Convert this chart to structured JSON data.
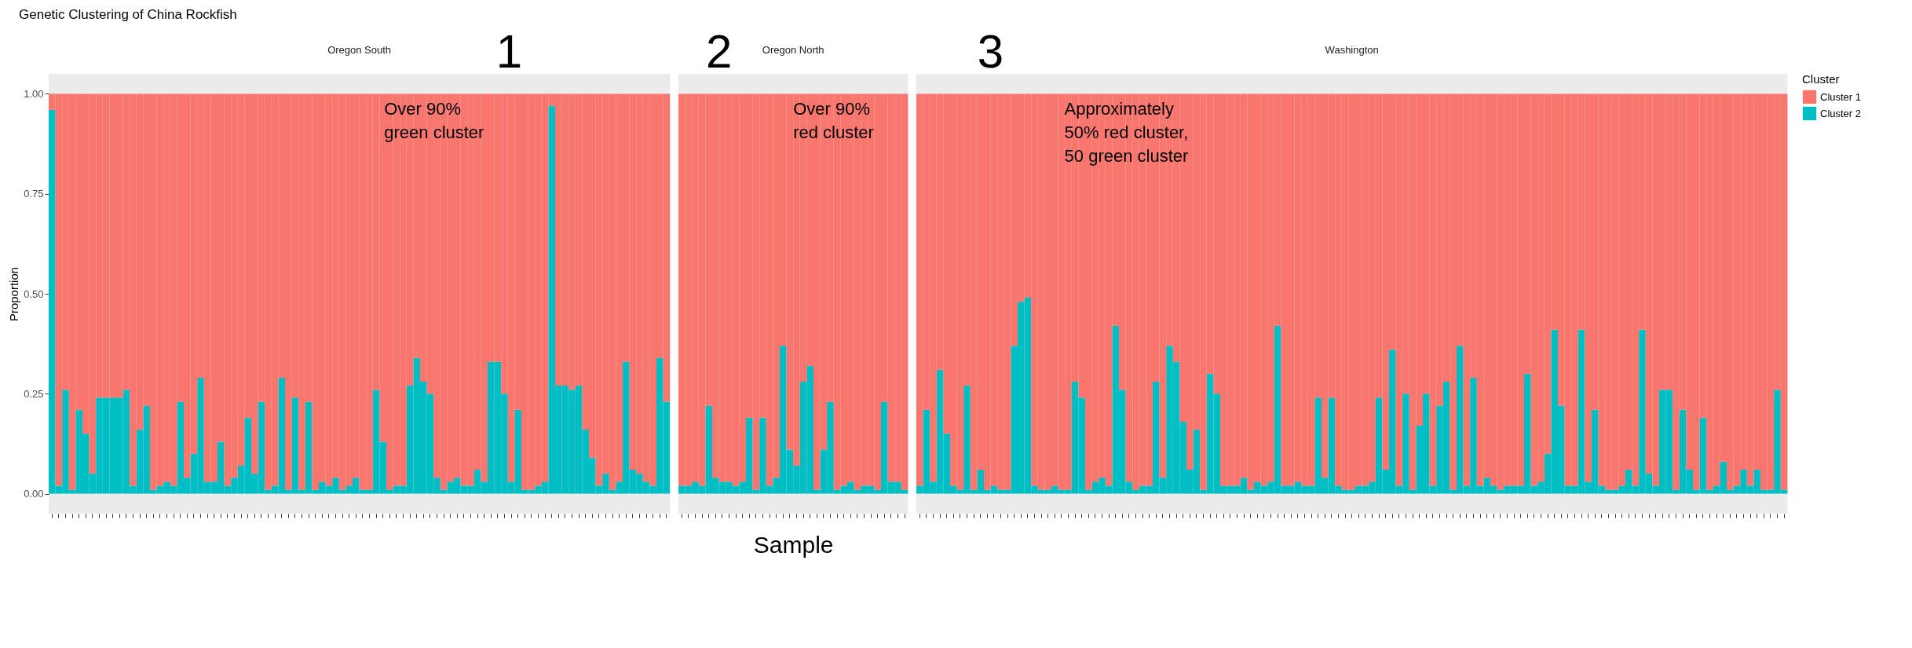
{
  "chart_data": [
    {
      "type": "bar",
      "stacked": true,
      "title": "Genetic Clustering of China Rockfish",
      "subtitle": "Oregon South",
      "ylabel": "Proportion",
      "tick_labels": "y",
      "ylim": [
        -0.05,
        1.05
      ],
      "yticks": [
        {
          "value": 0,
          "label": "0.00"
        },
        {
          "value": 0.25,
          "label": "0.25"
        },
        {
          "value": 0.5,
          "label": "0.50"
        },
        {
          "value": 0.75,
          "label": "0.75"
        },
        {
          "value": 1,
          "label": "1.00"
        }
      ],
      "annotations": [
        "1",
        "Over 90%\ngreen cluster"
      ],
      "categories": [
        null,
        null,
        null,
        null,
        null,
        null,
        null,
        null,
        null,
        null,
        null,
        null,
        null,
        null,
        null,
        null,
        null,
        null,
        null,
        null,
        null,
        null,
        null,
        null,
        null,
        null,
        null,
        null,
        null,
        null,
        null,
        null,
        null,
        null,
        null,
        null,
        null,
        null,
        null,
        null,
        null,
        null,
        null,
        null,
        null,
        null,
        null,
        null,
        null,
        null,
        null,
        null,
        null,
        null,
        null,
        null,
        null,
        null,
        null,
        null,
        null,
        null,
        null,
        null,
        null,
        null,
        null,
        null,
        null,
        null,
        null,
        null,
        null,
        null,
        null,
        null,
        null,
        null,
        null,
        null,
        null,
        null,
        null,
        null,
        null,
        null,
        null,
        null,
        null,
        null,
        null,
        null
      ],
      "series": [
        {
          "color": "#00bfc4",
          "values": [
            0.96,
            0.02,
            0.26,
            0.01,
            0.21,
            0.15,
            0.05,
            0.24,
            0.24,
            0.24,
            0.24,
            0.26,
            0.02,
            0.16,
            0.22,
            0.01,
            0.02,
            0.03,
            0.02,
            0.23,
            0.04,
            0.1,
            0.29,
            0.03,
            0.03,
            0.13,
            0.02,
            0.04,
            0.07,
            0.19,
            0.05,
            0.23,
            0.01,
            0.02,
            0.29,
            0.01,
            0.24,
            0.01,
            0.23,
            0.01,
            0.03,
            0.02,
            0.04,
            0.01,
            0.02,
            0.04,
            0.01,
            0.01,
            0.26,
            0.13,
            0.01,
            0.02,
            0.02,
            0.27,
            0.34,
            0.28,
            0.25,
            0.04,
            0.01,
            0.03,
            0.04,
            0.02,
            0.02,
            0.06,
            0.03,
            0.33,
            0.33,
            0.25,
            0.03,
            0.21,
            0.01,
            0.01,
            0.02,
            0.03,
            0.97,
            0.27,
            0.27,
            0.26,
            0.27,
            0.16,
            0.09,
            0.02,
            0.05,
            0.01,
            0.03,
            0.33,
            0.06,
            0.05,
            0.03,
            0.02,
            0.34,
            0.23
          ]
        },
        {
          "color": "#f8766d",
          "values": [
            0.04,
            0.98,
            0.74,
            0.99,
            0.79,
            0.85,
            0.95,
            0.76,
            0.76,
            0.76,
            0.76,
            0.74,
            0.98,
            0.84,
            0.78,
            0.99,
            0.98,
            0.97,
            0.98,
            0.77,
            0.96,
            0.9,
            0.71,
            0.97,
            0.97,
            0.87,
            0.98,
            0.96,
            0.93,
            0.81,
            0.95,
            0.77,
            0.99,
            0.98,
            0.71,
            0.99,
            0.76,
            0.99,
            0.77,
            0.99,
            0.97,
            0.98,
            0.96,
            0.99,
            0.98,
            0.96,
            0.99,
            0.99,
            0.74,
            0.87,
            0.99,
            0.98,
            0.98,
            0.73,
            0.66,
            0.72,
            0.75,
            0.96,
            0.99,
            0.97,
            0.96,
            0.98,
            0.98,
            0.94,
            0.97,
            0.67,
            0.67,
            0.75,
            0.97,
            0.79,
            0.99,
            0.99,
            0.98,
            0.97,
            0.03,
            0.73,
            0.73,
            0.74,
            0.73,
            0.84,
            0.91,
            0.98,
            0.95,
            0.99,
            0.97,
            0.67,
            0.94,
            0.95,
            0.97,
            0.98,
            0.66,
            0.77
          ]
        }
      ]
    },
    {
      "type": "bar",
      "stacked": true,
      "subtitle": "Oregon North",
      "xlabel": "Sample",
      "tick_labels": false,
      "ylim": [
        -0.05,
        1.05
      ],
      "annotations": [
        "2",
        "Over 90%\nred cluster"
      ],
      "categories": [
        null,
        null,
        null,
        null,
        null,
        null,
        null,
        null,
        null,
        null,
        null,
        null,
        null,
        null,
        null,
        null,
        null,
        null,
        null,
        null,
        null,
        null,
        null,
        null,
        null,
        null,
        null,
        null,
        null,
        null,
        null,
        null,
        null,
        null
      ],
      "series": [
        {
          "color": "#00bfc4",
          "values": [
            0.02,
            0.02,
            0.03,
            0.02,
            0.22,
            0.04,
            0.03,
            0.03,
            0.02,
            0.03,
            0.19,
            0.01,
            0.19,
            0.02,
            0.04,
            0.37,
            0.11,
            0.07,
            0.28,
            0.32,
            0.01,
            0.11,
            0.23,
            0.01,
            0.02,
            0.03,
            0.01,
            0.02,
            0.02,
            0.01,
            0.23,
            0.03,
            0.03,
            0.01
          ]
        },
        {
          "color": "#f8766d",
          "values": [
            0.98,
            0.98,
            0.97,
            0.98,
            0.78,
            0.96,
            0.97,
            0.97,
            0.98,
            0.97,
            0.81,
            0.99,
            0.81,
            0.98,
            0.96,
            0.63,
            0.89,
            0.93,
            0.72,
            0.68,
            0.99,
            0.89,
            0.77,
            0.99,
            0.98,
            0.97,
            0.99,
            0.98,
            0.98,
            0.99,
            0.77,
            0.97,
            0.97,
            0.99
          ]
        }
      ]
    },
    {
      "type": "bar",
      "stacked": true,
      "subtitle": "Washington",
      "tick_labels": false,
      "ylim": [
        -0.05,
        1.05
      ],
      "legend": "right",
      "legend_title": "Cluster",
      "annotations": [
        "3",
        "Approximately\n50% red cluster,\n50 green cluster"
      ],
      "categories": [
        null,
        null,
        null,
        null,
        null,
        null,
        null,
        null,
        null,
        null,
        null,
        null,
        null,
        null,
        null,
        null,
        null,
        null,
        null,
        null,
        null,
        null,
        null,
        null,
        null,
        null,
        null,
        null,
        null,
        null,
        null,
        null,
        null,
        null,
        null,
        null,
        null,
        null,
        null,
        null,
        null,
        null,
        null,
        null,
        null,
        null,
        null,
        null,
        null,
        null,
        null,
        null,
        null,
        null,
        null,
        null,
        null,
        null,
        null,
        null,
        null,
        null,
        null,
        null,
        null,
        null,
        null,
        null,
        null,
        null,
        null,
        null,
        null,
        null,
        null,
        null,
        null,
        null,
        null,
        null,
        null,
        null,
        null,
        null,
        null,
        null,
        null,
        null,
        null,
        null,
        null,
        null,
        null,
        null,
        null,
        null,
        null,
        null,
        null,
        null,
        null,
        null,
        null,
        null,
        null,
        null,
        null,
        null,
        null,
        null,
        null,
        null,
        null,
        null,
        null,
        null,
        null,
        null,
        null,
        null,
        null,
        null,
        null,
        null,
        null,
        null,
        null,
        null,
        null
      ],
      "series": [
        {
          "name": "Cluster 2",
          "color": "#00bfc4",
          "values": [
            0.02,
            0.21,
            0.03,
            0.31,
            0.15,
            0.02,
            0.01,
            0.27,
            0.01,
            0.06,
            0.01,
            0.02,
            0.01,
            0.01,
            0.37,
            0.48,
            0.49,
            0.02,
            0.01,
            0.01,
            0.02,
            0.01,
            0.01,
            0.28,
            0.24,
            0.01,
            0.03,
            0.04,
            0.02,
            0.42,
            0.26,
            0.03,
            0.01,
            0.02,
            0.02,
            0.28,
            0.04,
            0.37,
            0.33,
            0.18,
            0.06,
            0.16,
            0.01,
            0.3,
            0.25,
            0.02,
            0.02,
            0.02,
            0.04,
            0.01,
            0.03,
            0.02,
            0.03,
            0.42,
            0.02,
            0.02,
            0.03,
            0.02,
            0.02,
            0.24,
            0.04,
            0.24,
            0.02,
            0.01,
            0.01,
            0.02,
            0.02,
            0.03,
            0.24,
            0.06,
            0.36,
            0.02,
            0.25,
            0.01,
            0.17,
            0.25,
            0.02,
            0.22,
            0.28,
            0.01,
            0.37,
            0.02,
            0.29,
            0.02,
            0.04,
            0.02,
            0.01,
            0.02,
            0.02,
            0.02,
            0.3,
            0.02,
            0.03,
            0.1,
            0.41,
            0.22,
            0.02,
            0.02,
            0.41,
            0.03,
            0.21,
            0.02,
            0.01,
            0.01,
            0.02,
            0.06,
            0.02,
            0.41,
            0.05,
            0.02,
            0.26,
            0.26,
            0.01,
            0.21,
            0.06,
            0.01,
            0.19,
            0.01,
            0.02,
            0.08,
            0.01,
            0.02,
            0.06,
            0.02,
            0.06,
            0.01,
            0.01,
            0.26,
            0.01
          ]
        },
        {
          "name": "Cluster 1",
          "color": "#f8766d",
          "values": [
            0.98,
            0.79,
            0.97,
            0.69,
            0.85,
            0.98,
            0.99,
            0.73,
            0.99,
            0.94,
            0.99,
            0.98,
            0.99,
            0.99,
            0.63,
            0.52,
            0.51,
            0.98,
            0.99,
            0.99,
            0.98,
            0.99,
            0.99,
            0.72,
            0.76,
            0.99,
            0.97,
            0.96,
            0.98,
            0.58,
            0.74,
            0.97,
            0.99,
            0.98,
            0.98,
            0.72,
            0.96,
            0.63,
            0.67,
            0.82,
            0.94,
            0.84,
            0.99,
            0.7,
            0.75,
            0.98,
            0.98,
            0.98,
            0.96,
            0.99,
            0.97,
            0.98,
            0.97,
            0.58,
            0.98,
            0.98,
            0.97,
            0.98,
            0.98,
            0.76,
            0.96,
            0.76,
            0.98,
            0.99,
            0.99,
            0.98,
            0.98,
            0.97,
            0.76,
            0.94,
            0.64,
            0.98,
            0.75,
            0.99,
            0.83,
            0.75,
            0.98,
            0.78,
            0.72,
            0.99,
            0.63,
            0.98,
            0.71,
            0.98,
            0.96,
            0.98,
            0.99,
            0.98,
            0.98,
            0.98,
            0.7,
            0.98,
            0.97,
            0.9,
            0.59,
            0.78,
            0.98,
            0.98,
            0.59,
            0.97,
            0.79,
            0.98,
            0.99,
            0.99,
            0.98,
            0.94,
            0.98,
            0.59,
            0.95,
            0.98,
            0.74,
            0.74,
            0.99,
            0.79,
            0.94,
            0.99,
            0.81,
            0.99,
            0.98,
            0.92,
            0.99,
            0.98,
            0.94,
            0.98,
            0.94,
            0.99,
            0.99,
            0.74,
            0.99
          ]
        }
      ]
    }
  ]
}
